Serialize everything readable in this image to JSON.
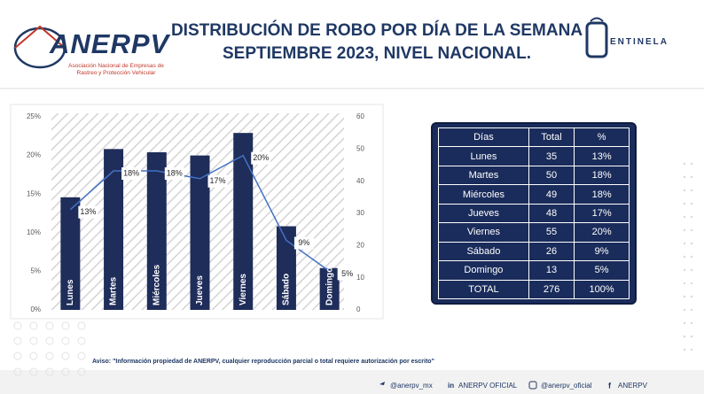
{
  "header": {
    "title": "DISTRIBUCIÓN DE ROBO POR DÍA DE LA SEMANA SEPTIEMBRE 2023, NIVEL NACIONAL.",
    "logo": "ANERPV",
    "logo_subtitle": "Asociación Nacional de Empresas de Rastreo y Protección Vehicular",
    "partner_logo": "ENTINELA"
  },
  "chart_data": {
    "type": "bar",
    "categories": [
      "Lunes",
      "Martes",
      "Miércoles",
      "Jueves",
      "Viernes",
      "Sábado",
      "Domingo"
    ],
    "series": [
      {
        "name": "Total",
        "type": "bar",
        "axis": "y2",
        "color": "#1f2d5a",
        "values": [
          35,
          50,
          49,
          48,
          55,
          26,
          13
        ]
      },
      {
        "name": "%",
        "type": "line",
        "color": "#4472c4",
        "values": [
          13,
          18,
          18,
          17,
          20,
          9,
          5
        ],
        "value_labels": [
          "13%",
          "18%",
          "18%",
          "17%",
          "20%",
          "9%",
          "5%"
        ]
      }
    ],
    "ylim": [
      0,
      25
    ],
    "yticks": [
      {
        "value": 0,
        "label": "0%"
      },
      {
        "value": 5,
        "label": "5%"
      },
      {
        "value": 10,
        "label": "10%"
      },
      {
        "value": 15,
        "label": "15%"
      },
      {
        "value": 20,
        "label": "20%"
      },
      {
        "value": 25,
        "label": "25%"
      }
    ],
    "y2lim": [
      0,
      60
    ],
    "y2ticks": [
      0,
      10,
      20,
      30,
      40,
      50,
      60
    ]
  },
  "table": {
    "header": [
      "Días",
      "Total",
      "%"
    ],
    "rows": [
      [
        "Lunes",
        "35",
        "13%"
      ],
      [
        "Martes",
        "50",
        "18%"
      ],
      [
        "Miércoles",
        "49",
        "18%"
      ],
      [
        "Jueves",
        "48",
        "17%"
      ],
      [
        "Viernes",
        "55",
        "20%"
      ],
      [
        "Sábado",
        "26",
        "9%"
      ],
      [
        "Domingo",
        "13",
        "5%"
      ],
      [
        "TOTAL",
        "276",
        "100%"
      ]
    ]
  },
  "footer": {
    "notice": "Aviso: \"Información propiedad de ANERPV, cualquier reproducción parcial o total requiere autorización por escrito\"",
    "social": [
      "@anerpv_mx",
      "ANERPV OFICIAL",
      "@anerpv_oficial",
      "ANERPV"
    ]
  }
}
